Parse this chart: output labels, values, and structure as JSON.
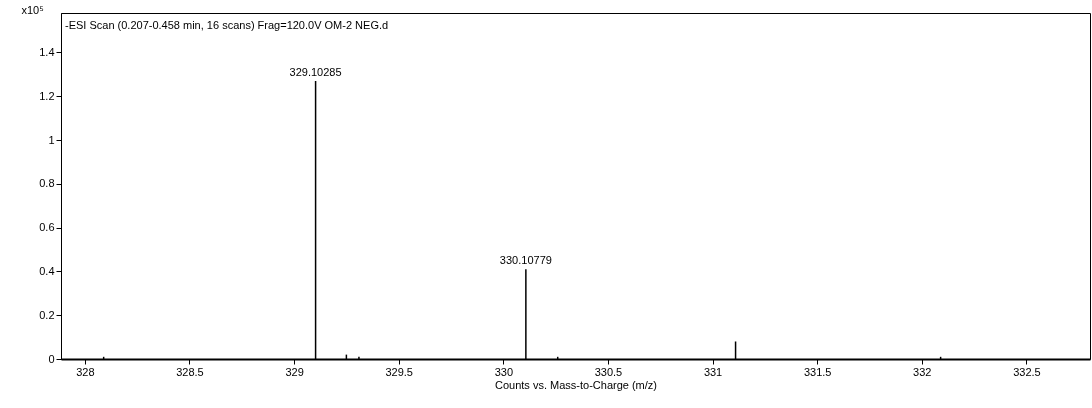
{
  "chart_data": {
    "type": "bar",
    "title": "-ESI Scan (0.207-0.458 min, 16 scans) Frag=120.0V OM-2 NEG.d",
    "xlabel": "Counts vs. Mass-to-Charge (m/z)",
    "ylabel": "x10⁵",
    "x": [
      328.09,
      329.10285,
      329.25,
      329.31,
      330.10779,
      330.26,
      331.11,
      332.09
    ],
    "values": [
      0.01,
      1.27,
      0.02,
      0.01,
      0.41,
      0.01,
      0.08,
      0.01
    ],
    "annotations": [
      {
        "text": "329.10285",
        "x": 329.10285,
        "y": 1.27
      },
      {
        "text": "330.10779",
        "x": 330.10779,
        "y": 0.41
      }
    ],
    "color": "#000000",
    "xlim": [
      327.91,
      332.78
    ],
    "xticks": [
      328,
      328.5,
      329,
      329.5,
      330,
      330.5,
      331,
      331.5,
      332,
      332.5
    ],
    "ylim": [
      0,
      1.58
    ],
    "yticks": [
      0,
      0.2,
      0.4,
      0.6,
      0.8,
      1,
      1.2,
      1.4
    ],
    "grid": false
  }
}
